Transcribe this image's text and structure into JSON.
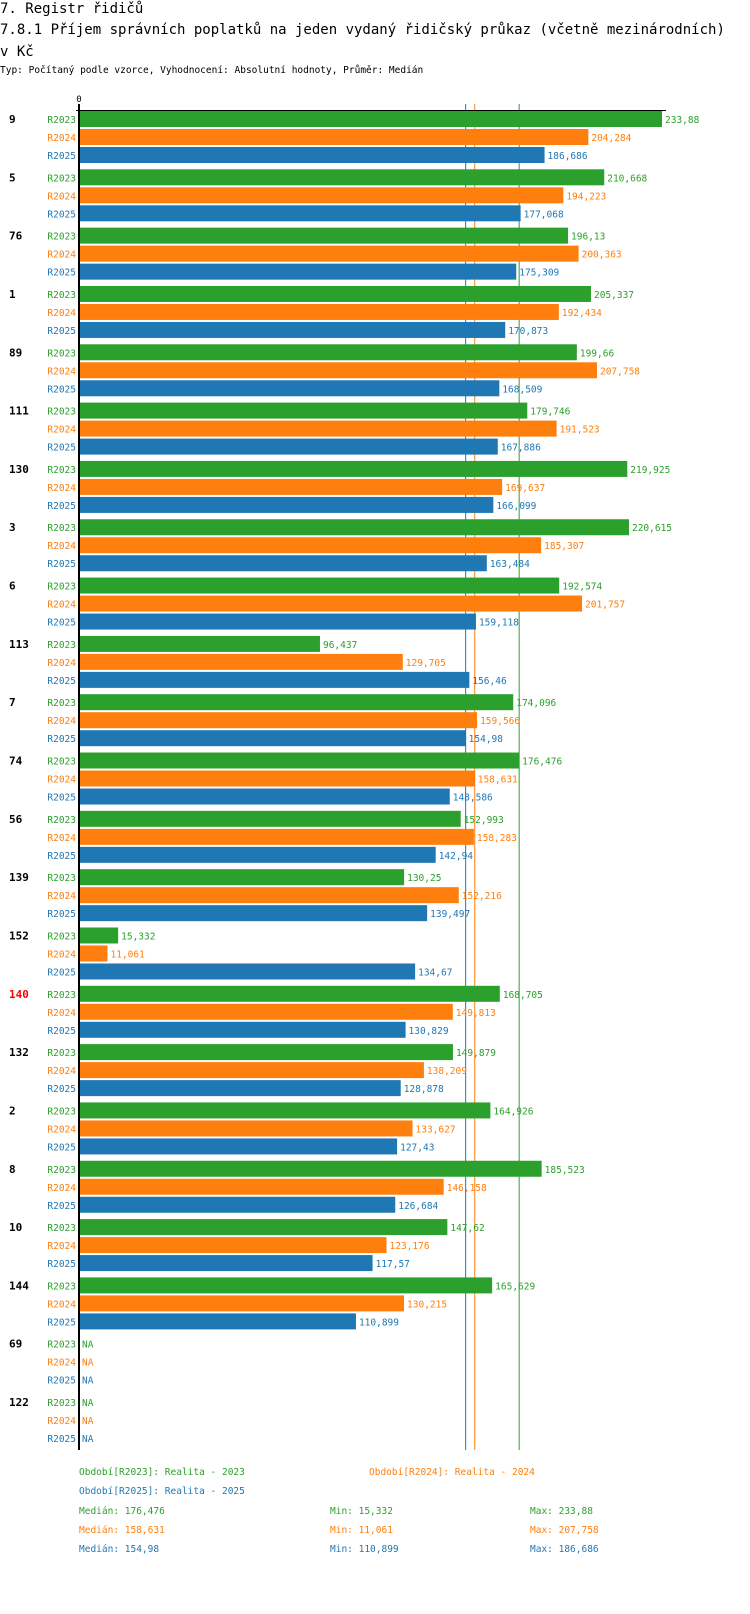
{
  "header": {
    "section_title": "7. Registr řidičů",
    "chart_title": "7.8.1 Příjem správních poplatků na jeden vydaný řidičský průkaz (včetně mezinárodních) v Kč",
    "subtitle": "Typ: Počítaný podle vzorce, Vyhodnocení: Absolutní hodnoty, Průměr: Medián"
  },
  "colors": {
    "R2023": "#2ca02c",
    "R2024": "#ff7f0e",
    "R2025": "#1f77b4",
    "highlight_label": "#ff0000",
    "axis": "#000000"
  },
  "chart_data": {
    "type": "bar",
    "orientation": "horizontal",
    "title": "7.8.1 Příjem správních poplatků na jeden vydaný řidičský průkaz (včetně mezinárodních) v Kč",
    "xlabel": "",
    "ylabel": "",
    "x_tick_labels": [
      "0"
    ],
    "xlim": [
      0,
      233.88
    ],
    "grid": false,
    "decimal_separator": ",",
    "na_label": "NA",
    "highlighted_category": "140",
    "categories": [
      "9",
      "5",
      "76",
      "1",
      "89",
      "111",
      "130",
      "3",
      "6",
      "113",
      "7",
      "74",
      "56",
      "139",
      "152",
      "140",
      "132",
      "2",
      "8",
      "10",
      "144",
      "69",
      "122"
    ],
    "series": [
      {
        "name": "R2023",
        "legend": "Období[R2023]: Realita - 2023",
        "values": [
          233.88,
          210.668,
          196.13,
          205.337,
          199.66,
          179.746,
          219.925,
          220.615,
          192.574,
          96.437,
          174.096,
          176.476,
          152.993,
          130.25,
          15.332,
          168.705,
          149.879,
          164.926,
          185.523,
          147.62,
          165.629,
          null,
          null
        ],
        "median": 176.476,
        "min": 15.332,
        "max": 233.88
      },
      {
        "name": "R2024",
        "legend": "Období[R2024]: Realita - 2024",
        "values": [
          204.284,
          194.223,
          200.363,
          192.434,
          207.758,
          191.523,
          169.637,
          185.307,
          201.757,
          129.705,
          159.566,
          158.631,
          158.283,
          152.216,
          11.061,
          149.813,
          138.209,
          133.627,
          146.158,
          123.176,
          130.215,
          null,
          null
        ],
        "median": 158.631,
        "min": 11.061,
        "max": 207.758
      },
      {
        "name": "R2025",
        "legend": "Období[R2025]: Realita - 2025",
        "values": [
          186.686,
          177.068,
          175.309,
          170.873,
          168.509,
          167.886,
          166.099,
          163.484,
          159.118,
          156.46,
          154.98,
          148.586,
          142.94,
          139.497,
          134.67,
          130.829,
          128.878,
          127.43,
          126.684,
          117.57,
          110.899,
          null,
          null
        ],
        "median": 154.98,
        "min": 110.899,
        "max": 186.686
      }
    ],
    "stats_labels": {
      "median": "Medián: ",
      "min": "Min: ",
      "max": "Max: "
    },
    "legend_position": "bottom"
  }
}
